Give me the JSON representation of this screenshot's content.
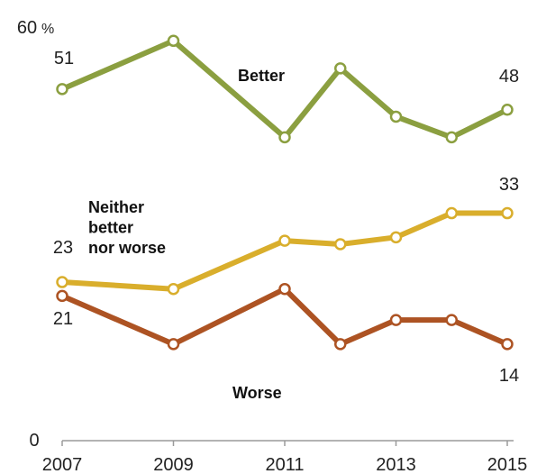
{
  "chart_data": {
    "type": "line",
    "title": "",
    "xlabel": "",
    "ylabel": "",
    "y_unit": "%",
    "ylim": [
      0,
      60
    ],
    "y_ticks": [
      "0",
      "60"
    ],
    "x_ticks": [
      "2007",
      "2009",
      "2011",
      "2013",
      "2015"
    ],
    "x_tick_values": [
      2007,
      2009,
      2011,
      2013,
      2015
    ],
    "series": [
      {
        "name": "Better",
        "color": "#8b9f40",
        "x": [
          2007,
          2009,
          2011,
          2012,
          2013,
          2014,
          2015
        ],
        "values": [
          51,
          58,
          44,
          54,
          47,
          44,
          48
        ]
      },
      {
        "name": "Neither better nor worse",
        "color": "#d9ae2c",
        "x": [
          2007,
          2009,
          2011,
          2012,
          2013,
          2014,
          2015
        ],
        "values": [
          23,
          22,
          29,
          28.5,
          29.5,
          33,
          33
        ]
      },
      {
        "name": "Worse",
        "color": "#ad5323",
        "x": [
          2007,
          2009,
          2011,
          2012,
          2013,
          2014,
          2015
        ],
        "values": [
          21,
          14,
          22,
          14,
          17.5,
          17.5,
          14
        ]
      }
    ],
    "data_labels": [
      {
        "series": 0,
        "point": 0,
        "text": "51"
      },
      {
        "series": 0,
        "point": 6,
        "text": "48"
      },
      {
        "series": 1,
        "point": 0,
        "text": "23"
      },
      {
        "series": 1,
        "point": 6,
        "text": "33"
      },
      {
        "series": 2,
        "point": 0,
        "text": "21"
      },
      {
        "series": 2,
        "point": 6,
        "text": "14"
      }
    ],
    "series_labels": [
      {
        "series": 0,
        "lines": [
          "Better"
        ]
      },
      {
        "series": 1,
        "lines": [
          "Neither",
          "better",
          "nor worse"
        ]
      },
      {
        "series": 2,
        "lines": [
          "Worse"
        ]
      }
    ],
    "grid": false,
    "legend": "none"
  }
}
